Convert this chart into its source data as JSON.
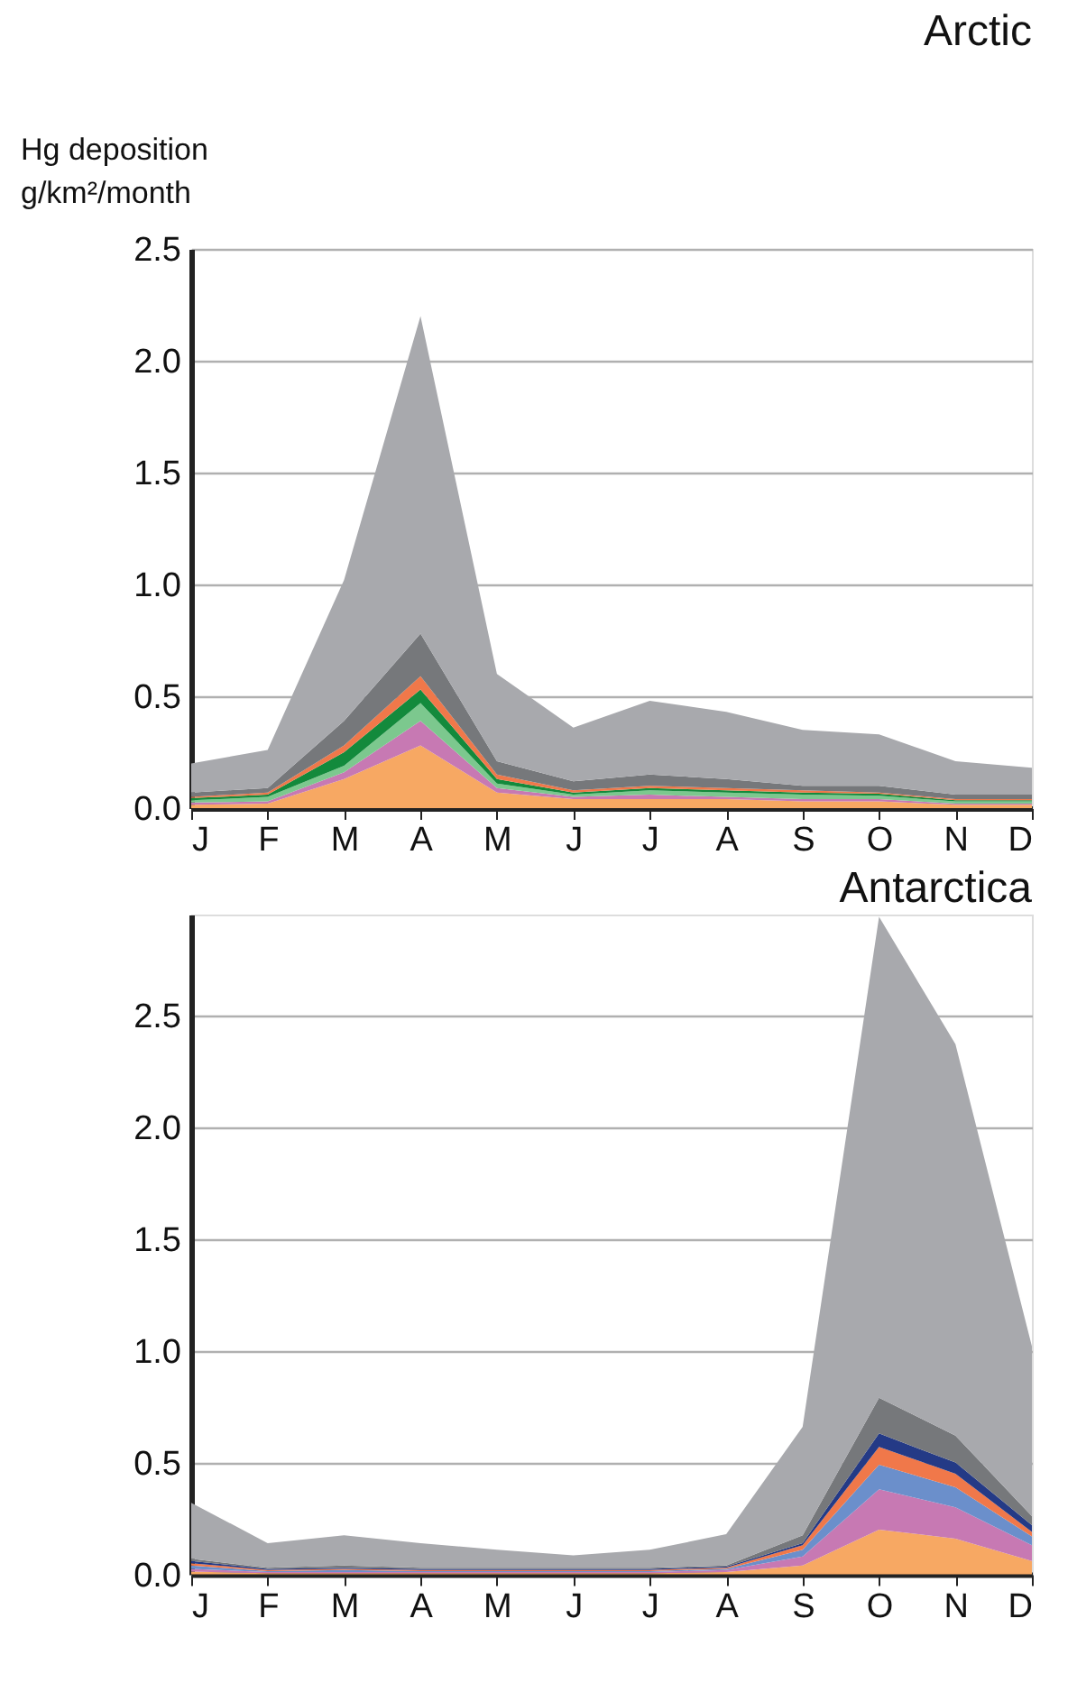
{
  "chart_data": [
    {
      "type": "area",
      "title": "Arctic",
      "ylabel": "Hg deposition\ng/km²/month",
      "stacked": true,
      "grid": "y",
      "categories": [
        "J",
        "F",
        "M",
        "A",
        "M",
        "J",
        "J",
        "A",
        "S",
        "O",
        "N",
        "D"
      ],
      "ylim": [
        0,
        2.5
      ],
      "yticks": [
        {
          "value": 0,
          "label": "0.0"
        },
        0.5,
        {
          "value": 1,
          "label": "1.0"
        },
        1.5,
        {
          "value": 2,
          "label": "2.0"
        },
        2.5
      ],
      "series": [
        {
          "color": "#f7a863",
          "values": [
            0.015,
            0.02,
            0.13,
            0.28,
            0.07,
            0.04,
            0.04,
            0.04,
            0.03,
            0.03,
            0.015,
            0.015
          ]
        },
        {
          "color": "#c779b3",
          "values": [
            0.01,
            0.01,
            0.03,
            0.11,
            0.02,
            0.01,
            0.02,
            0.01,
            0.01,
            0.01,
            0.005,
            0.005
          ]
        },
        {
          "color": "#7cc88e",
          "values": [
            0.01,
            0.02,
            0.03,
            0.08,
            0.02,
            0.01,
            0.02,
            0.02,
            0.02,
            0.015,
            0.01,
            0.01
          ]
        },
        {
          "color": "#138a3c",
          "values": [
            0.01,
            0.01,
            0.06,
            0.06,
            0.02,
            0.01,
            0.01,
            0.01,
            0.01,
            0.01,
            0.005,
            0.005
          ]
        },
        {
          "color": "#f0784a",
          "values": [
            0.005,
            0.01,
            0.03,
            0.06,
            0.02,
            0.01,
            0.01,
            0.01,
            0.01,
            0.005,
            0.005,
            0.005
          ]
        },
        {
          "color": "#76787b",
          "values": [
            0.02,
            0.02,
            0.11,
            0.19,
            0.06,
            0.04,
            0.05,
            0.04,
            0.02,
            0.03,
            0.02,
            0.02
          ]
        },
        {
          "color": "#a8a9ad",
          "values": [
            0.13,
            0.17,
            0.63,
            1.42,
            0.39,
            0.24,
            0.33,
            0.3,
            0.25,
            0.23,
            0.15,
            0.12
          ]
        }
      ]
    },
    {
      "type": "area",
      "title": "Antarctica",
      "stacked": true,
      "grid": "y",
      "categories": [
        "J",
        "F",
        "M",
        "A",
        "M",
        "J",
        "J",
        "A",
        "S",
        "O",
        "N",
        "D"
      ],
      "ylim": [
        0,
        2.95
      ],
      "yticks": [
        {
          "value": 0,
          "label": "0.0"
        },
        0.5,
        {
          "value": 1,
          "label": "1.0"
        },
        1.5,
        {
          "value": 2,
          "label": "2.0"
        },
        2.5
      ],
      "series": [
        {
          "color": "#f7a863",
          "values": [
            0.012,
            0.005,
            0.005,
            0.005,
            0.005,
            0.005,
            0.005,
            0.01,
            0.04,
            0.2,
            0.16,
            0.06
          ]
        },
        {
          "color": "#c779b3",
          "values": [
            0.013,
            0.005,
            0.005,
            0.005,
            0.005,
            0.005,
            0.005,
            0.01,
            0.04,
            0.18,
            0.14,
            0.07
          ]
        },
        {
          "color": "#6b8fcb",
          "values": [
            0.015,
            0.005,
            0.01,
            0.005,
            0.005,
            0.005,
            0.005,
            0.005,
            0.03,
            0.11,
            0.09,
            0.04
          ]
        },
        {
          "color": "#f0784a",
          "values": [
            0.01,
            0.005,
            0.005,
            0.005,
            0.005,
            0.005,
            0.005,
            0.005,
            0.02,
            0.08,
            0.06,
            0.02
          ]
        },
        {
          "color": "#243a86",
          "values": [
            0.01,
            0.005,
            0.005,
            0.005,
            0.005,
            0.005,
            0.005,
            0.005,
            0.01,
            0.06,
            0.05,
            0.03
          ]
        },
        {
          "color": "#76787b",
          "values": [
            0.01,
            0.005,
            0.01,
            0.005,
            0.005,
            0.005,
            0.005,
            0.005,
            0.035,
            0.16,
            0.12,
            0.04
          ]
        },
        {
          "color": "#a8a9ad",
          "values": [
            0.25,
            0.11,
            0.135,
            0.11,
            0.08,
            0.055,
            0.08,
            0.14,
            0.485,
            2.15,
            1.75,
            0.76
          ]
        }
      ]
    }
  ]
}
